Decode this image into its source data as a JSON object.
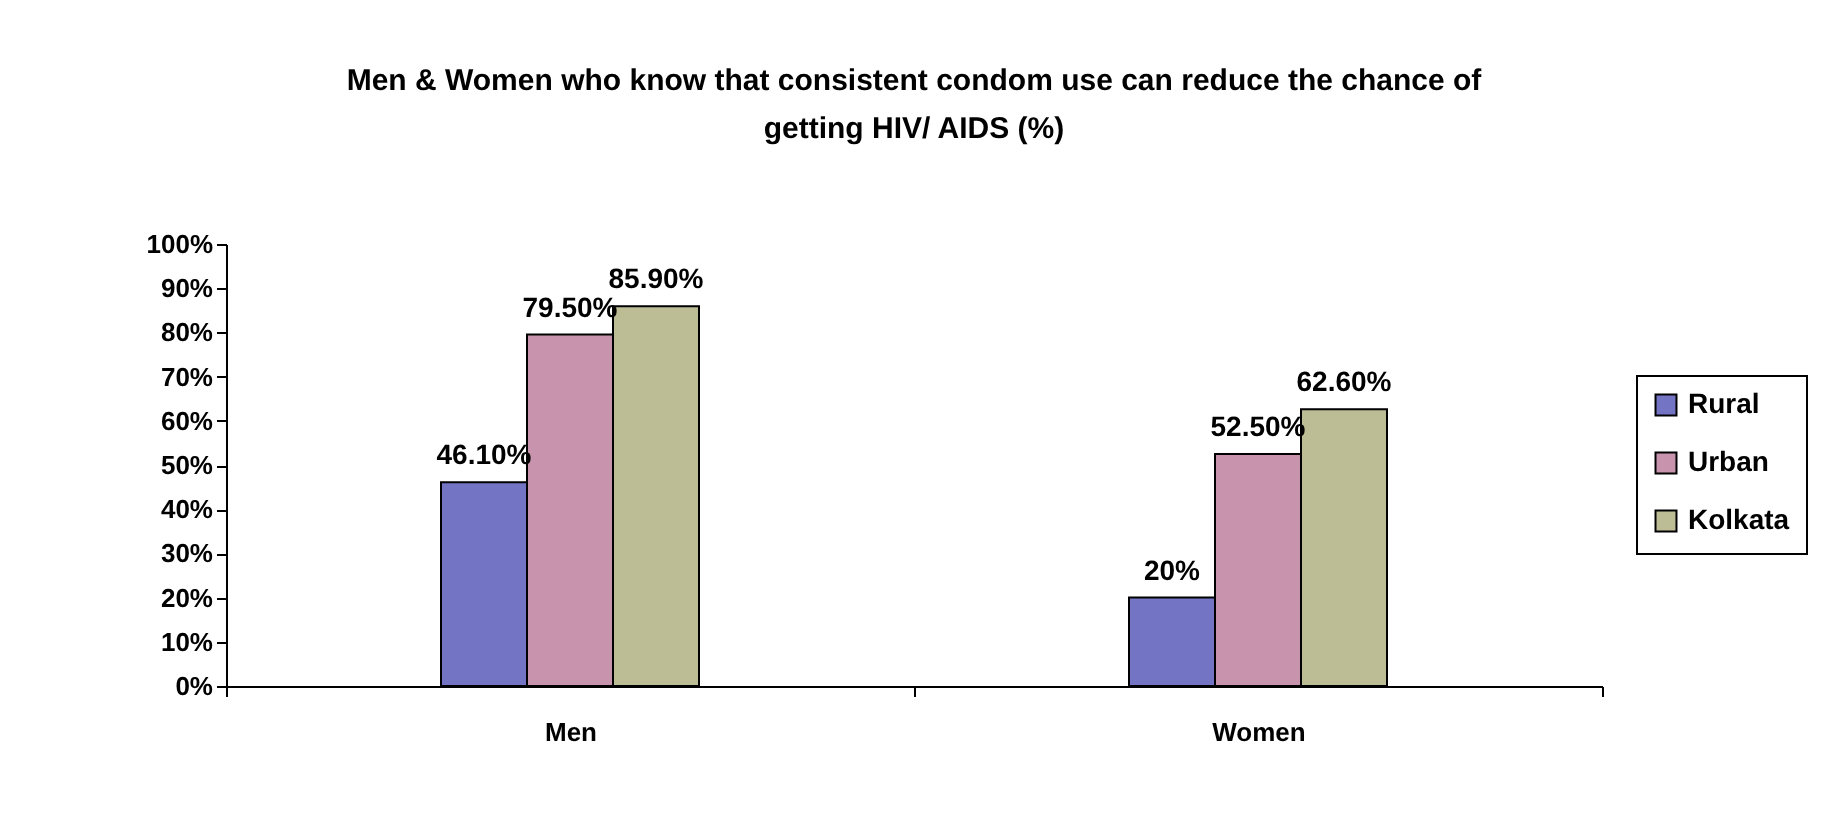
{
  "chart_data": {
    "type": "bar",
    "title": "Men & Women who know that consistent condom use can reduce the chance of getting HIV/ AIDS (%)",
    "categories": [
      "Men",
      "Women"
    ],
    "series": [
      {
        "name": "Rural",
        "color": "#7474c4",
        "values": [
          46.1,
          20
        ],
        "value_labels": [
          "46.10%",
          "20%"
        ]
      },
      {
        "name": "Urban",
        "color": "#c894ad",
        "values": [
          79.5,
          52.5
        ],
        "value_labels": [
          "79.50%",
          "52.50%"
        ]
      },
      {
        "name": "Kolkata",
        "color": "#bdbd95",
        "values": [
          85.9,
          62.6
        ],
        "value_labels": [
          "85.90%",
          "62.60%"
        ]
      }
    ],
    "ylim": [
      0,
      100
    ],
    "yticks": [
      {
        "value": 0,
        "label": "0%"
      },
      {
        "value": 10,
        "label": "10%"
      },
      {
        "value": 20,
        "label": "20%"
      },
      {
        "value": 30,
        "label": "30%"
      },
      {
        "value": 40,
        "label": "40%"
      },
      {
        "value": 50,
        "label": "50%"
      },
      {
        "value": 60,
        "label": "60%"
      },
      {
        "value": 70,
        "label": "70%"
      },
      {
        "value": 80,
        "label": "80%"
      },
      {
        "value": 90,
        "label": "90%"
      },
      {
        "value": 100,
        "label": "100%"
      }
    ],
    "grid": false,
    "legend": "right"
  }
}
